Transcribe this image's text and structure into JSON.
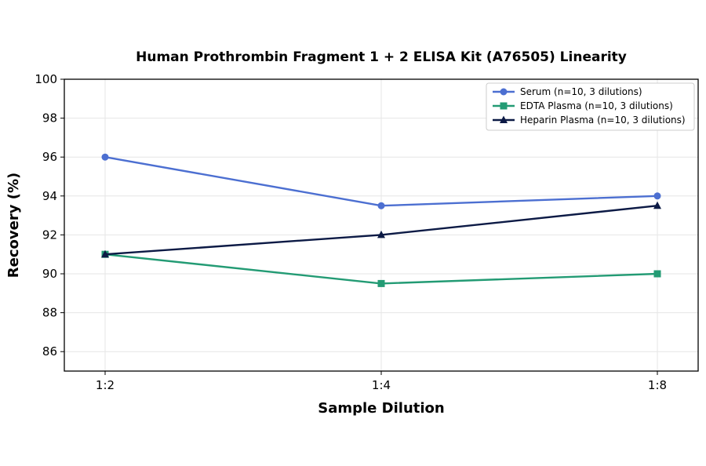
{
  "chart_data": {
    "type": "line",
    "title": "Human Prothrombin Fragment 1 + 2 ELISA Kit (A76505) Linearity",
    "xlabel": "Sample Dilution",
    "ylabel": "Recovery (%)",
    "categories": [
      "1:2",
      "1:4",
      "1:8"
    ],
    "ylim": [
      85,
      100
    ],
    "yticks": [
      86,
      88,
      90,
      92,
      94,
      96,
      98,
      100
    ],
    "grid": true,
    "legend_position": "top-right",
    "series": [
      {
        "name": "Serum (n=10, 3 dilutions)",
        "values": [
          96,
          93.5,
          94
        ],
        "color": "#4c6fd1",
        "marker": "circle"
      },
      {
        "name": "EDTA Plasma (n=10, 3 dilutions)",
        "values": [
          91,
          89.5,
          90
        ],
        "color": "#239b74",
        "marker": "square"
      },
      {
        "name": "Heparin Plasma (n=10, 3 dilutions)",
        "values": [
          91,
          92,
          93.5
        ],
        "color": "#0c1a45",
        "marker": "triangle"
      }
    ]
  }
}
